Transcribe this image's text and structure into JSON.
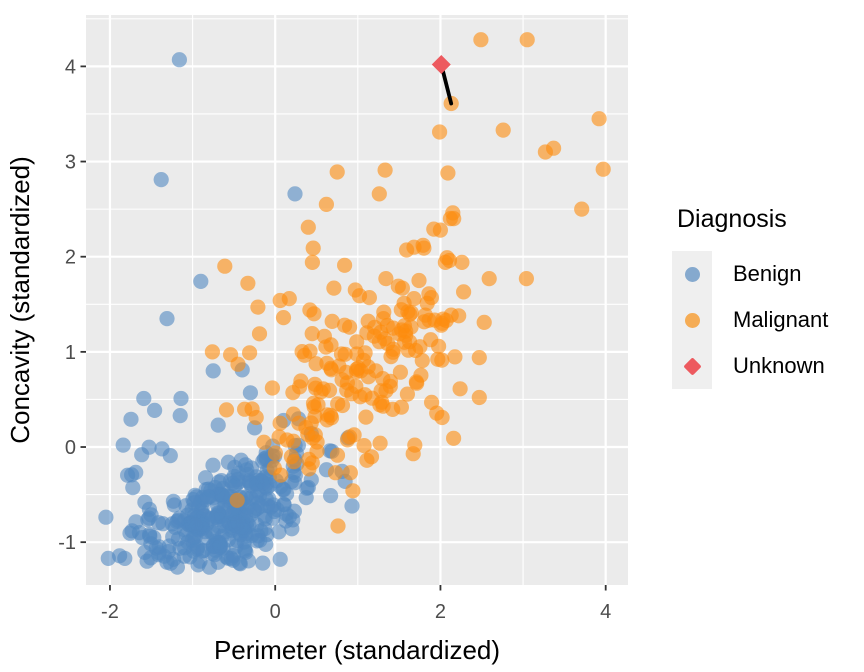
{
  "chart_data": {
    "type": "scatter",
    "title": "",
    "xlabel": "Perimeter (standardized)",
    "ylabel": "Concavity (standardized)",
    "xlim": [
      -2.29,
      4.27
    ],
    "ylim": [
      -1.45,
      4.54
    ],
    "x_major_ticks": [
      -2,
      0,
      2,
      4
    ],
    "y_major_ticks": [
      -1,
      0,
      1,
      2,
      3,
      4
    ],
    "x_minor_ticks": [
      -1,
      1,
      3
    ],
    "y_minor_ticks": [
      -0.5,
      0.5,
      1.5,
      2.5,
      3.5,
      4.5
    ],
    "grid": true,
    "legend": {
      "title": "Diagnosis",
      "position": "right",
      "entries": [
        {
          "label": "Benign",
          "shape": "circle",
          "color": "#85A9CE"
        },
        {
          "label": "Malignant",
          "shape": "circle",
          "color": "#F5AC55"
        },
        {
          "label": "Unknown",
          "shape": "diamond",
          "color": "#ED5A5F"
        }
      ]
    },
    "new_observation": {
      "series": "Unknown",
      "x": 2.01,
      "y": 4.02,
      "shape": "diamond",
      "color": "#ED5A5F",
      "size": 9.5
    },
    "neighbor_segment": {
      "x1": 2.01,
      "y1": 4.02,
      "x2": 2.13,
      "y2": 3.61,
      "color": "#000000",
      "width": 3.8
    },
    "series": [
      {
        "name": "Benign",
        "shape": "circle",
        "color": "#5289C1",
        "opacity": 0.6,
        "points": [
          [
            -1.16,
            4.07
          ],
          [
            -1.38,
            2.81
          ],
          [
            0.24,
            2.66
          ],
          [
            -0.9,
            1.74
          ],
          [
            -1.31,
            1.35
          ],
          [
            -0.75,
            0.8
          ],
          [
            -0.4,
            0.81
          ],
          [
            -0.3,
            0.57
          ],
          [
            -1.59,
            0.51
          ],
          [
            -1.14,
            0.51
          ],
          [
            -1.15,
            0.33
          ],
          [
            -0.69,
            0.23
          ],
          [
            -1.84,
            0.02
          ],
          [
            -1.37,
            -0.02
          ],
          [
            -1.27,
            -0.09
          ],
          [
            0.67,
            -0.51
          ],
          [
            0.93,
            -0.62
          ],
          [
            -2.02,
            -1.17
          ],
          [
            -1.82,
            -1.17
          ],
          [
            -1.55,
            -1.2
          ],
          [
            -1.31,
            -1.21
          ],
          [
            -1.23,
            -1.18
          ],
          [
            -0.91,
            -1.2
          ],
          [
            -0.51,
            -1.19
          ],
          [
            -0.15,
            -1.22
          ],
          [
            0.06,
            -1.18
          ]
        ],
        "clusters": [
          {
            "n": 150,
            "cx": -0.62,
            "cy": -0.78,
            "sx": 0.34,
            "sy": 0.22,
            "rho": 0.35
          },
          {
            "n": 80,
            "cx": -0.35,
            "cy": -0.45,
            "sx": 0.45,
            "sy": 0.3,
            "rho": 0.45
          },
          {
            "n": 55,
            "cx": -0.95,
            "cy": -0.95,
            "sx": 0.42,
            "sy": 0.16,
            "rho": 0.2
          },
          {
            "n": 35,
            "cx": 0.05,
            "cy": -0.35,
            "sx": 0.33,
            "sy": 0.33,
            "rho": 0.3
          },
          {
            "n": 15,
            "cx": -1.52,
            "cy": -0.55,
            "sx": 0.2,
            "sy": 0.4,
            "rho": 0.0
          }
        ],
        "cluster_clip": {
          "x": [
            -2.1,
            0.95
          ],
          "y": [
            -1.28,
            0.9
          ]
        }
      },
      {
        "name": "Malignant",
        "shape": "circle",
        "color": "#FD8C0D",
        "opacity": 0.6,
        "points": [
          [
            2.49,
            4.28
          ],
          [
            3.05,
            4.28
          ],
          [
            2.13,
            3.61
          ],
          [
            3.92,
            3.45
          ],
          [
            1.99,
            3.31
          ],
          [
            2.76,
            3.33
          ],
          [
            3.27,
            3.1
          ],
          [
            3.37,
            3.14
          ],
          [
            3.97,
            2.92
          ],
          [
            0.75,
            2.89
          ],
          [
            1.33,
            2.91
          ],
          [
            2.09,
            2.88
          ],
          [
            1.26,
            2.66
          ],
          [
            0.62,
            2.55
          ],
          [
            3.71,
            2.5
          ],
          [
            2.15,
            2.46
          ],
          [
            2.16,
            2.4
          ],
          [
            2.12,
            2.4
          ],
          [
            0.4,
            2.31
          ],
          [
            2.0,
            2.28
          ],
          [
            1.92,
            2.29
          ],
          [
            0.46,
            2.09
          ],
          [
            1.8,
            2.09
          ],
          [
            1.59,
            2.07
          ],
          [
            1.68,
            2.1
          ],
          [
            1.79,
            2.12
          ],
          [
            2.08,
            1.99
          ],
          [
            2.11,
            1.96
          ],
          [
            2.06,
            1.94
          ],
          [
            2.26,
            1.94
          ],
          [
            -0.61,
            1.9
          ],
          [
            0.45,
            1.94
          ],
          [
            0.84,
            1.91
          ],
          [
            2.59,
            1.77
          ],
          [
            3.04,
            1.77
          ],
          [
            1.34,
            1.77
          ],
          [
            1.74,
            1.75
          ],
          [
            -0.33,
            1.72
          ],
          [
            0.71,
            1.67
          ],
          [
            1.49,
            1.69
          ],
          [
            1.54,
            1.67
          ],
          [
            2.28,
            1.63
          ],
          [
            0.97,
            1.65
          ],
          [
            1.02,
            1.59
          ],
          [
            1.86,
            1.61
          ],
          [
            1.14,
            1.57
          ],
          [
            0.06,
            1.54
          ],
          [
            0.17,
            1.56
          ],
          [
            1.56,
            1.51
          ],
          [
            1.68,
            1.56
          ],
          [
            1.89,
            1.57
          ],
          [
            1.84,
            1.51
          ],
          [
            -0.21,
            1.47
          ],
          [
            0.42,
            1.44
          ],
          [
            0.47,
            1.4
          ],
          [
            2.02,
            1.3
          ],
          [
            2.53,
            1.31
          ],
          [
            0.1,
            1.36
          ],
          [
            0.69,
            1.32
          ],
          [
            1.31,
            1.35
          ],
          [
            0.84,
            1.28
          ],
          [
            0.9,
            1.26
          ],
          [
            2.07,
            1.33
          ],
          [
            2.01,
            1.28
          ],
          [
            1.11,
            1.2
          ],
          [
            -0.19,
            1.19
          ],
          [
            1.43,
            1.25
          ],
          [
            1.53,
            1.23
          ],
          [
            1.5,
            1.19
          ],
          [
            2.47,
            0.94
          ],
          [
            2.47,
            0.52
          ],
          [
            2.02,
            0.31
          ],
          [
            -0.76,
            1.0
          ],
          [
            -0.54,
            0.97
          ],
          [
            -0.45,
            0.87
          ],
          [
            -0.31,
            0.99
          ],
          [
            -0.59,
            0.39
          ],
          [
            -0.28,
            0.4
          ],
          [
            -0.23,
            0.31
          ],
          [
            1.69,
            0.02
          ],
          [
            1.27,
            0.04
          ],
          [
            1.67,
            -0.07
          ],
          [
            1.11,
            -0.14
          ],
          [
            0.73,
            -0.27
          ],
          [
            0.91,
            -0.27
          ],
          [
            0.94,
            -0.46
          ],
          [
            -0.46,
            -0.56
          ],
          [
            0.76,
            -0.83
          ]
        ],
        "clusters": [
          {
            "n": 70,
            "cx": 1.15,
            "cy": 0.72,
            "sx": 0.5,
            "sy": 0.36,
            "rho": 0.45
          },
          {
            "n": 45,
            "cx": 0.55,
            "cy": 0.33,
            "sx": 0.42,
            "sy": 0.36,
            "rho": 0.45
          },
          {
            "n": 25,
            "cx": 1.6,
            "cy": 1.02,
            "sx": 0.42,
            "sy": 0.42,
            "rho": 0.3
          }
        ],
        "cluster_clip": {
          "x": [
            -0.6,
            2.38
          ],
          "y": [
            -0.5,
            1.45
          ]
        }
      }
    ],
    "style": {
      "panel_bg": "#EBEBEB",
      "grid_color": "#FFFFFF",
      "grid_major_width": 2.2,
      "grid_minor_width": 1.1,
      "tick_color": "#333333",
      "tick_label_color": "#4D4D4D",
      "axis_title_color": "#000000",
      "point_radius": 7.6,
      "legend_key_bg": "#EFEFEF"
    }
  }
}
